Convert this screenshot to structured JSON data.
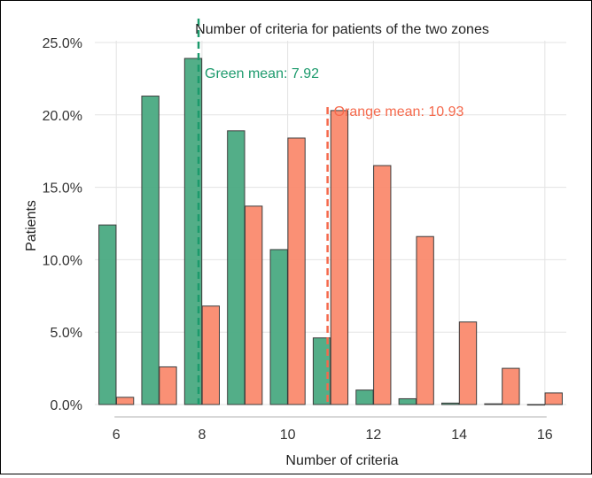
{
  "chart_data": {
    "type": "bar",
    "title": "Number of criteria for patients of the two zones",
    "xlabel": "Number of criteria",
    "ylabel": "Patients",
    "x": [
      6,
      7,
      8,
      9,
      10,
      11,
      12,
      13,
      14,
      15,
      16
    ],
    "xticks": [
      6,
      8,
      10,
      12,
      14,
      16
    ],
    "xlim": [
      5.5,
      16.5
    ],
    "ylim": [
      0,
      25
    ],
    "yticks": [
      0,
      5,
      10,
      15,
      20,
      25
    ],
    "ytick_labels": [
      "0.0%",
      "5.0%",
      "10.0%",
      "15.0%",
      "20.0%",
      "25.0%"
    ],
    "grid": true,
    "series": [
      {
        "key": "green",
        "color": "#4aaa82",
        "values": [
          12.4,
          21.3,
          23.9,
          18.9,
          10.7,
          4.6,
          1.0,
          0.4,
          0.1,
          0.05,
          0.0
        ]
      },
      {
        "key": "orange",
        "color": "#fa8a6e",
        "values": [
          0.5,
          2.6,
          6.8,
          13.7,
          18.4,
          20.3,
          16.5,
          11.6,
          5.7,
          2.5,
          0.8
        ]
      }
    ],
    "mean_lines": [
      {
        "series": "green",
        "x": 7.92,
        "label": "Green mean: 7.92",
        "color": "#1c9a6c"
      },
      {
        "series": "orange",
        "x": 10.93,
        "label": "Orange mean: 10.93",
        "color": "#f5694c"
      }
    ]
  }
}
